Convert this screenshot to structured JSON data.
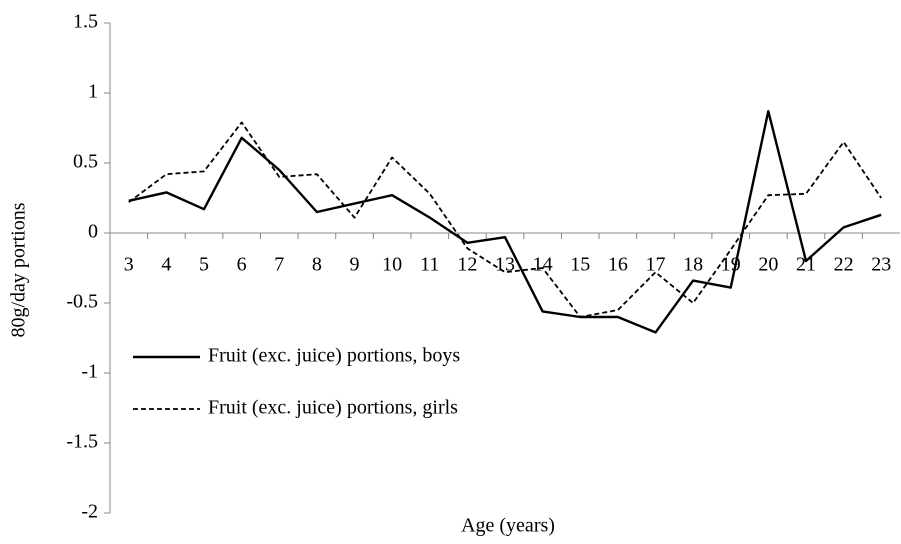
{
  "chart_data": {
    "type": "line",
    "x_label": "Age (years)",
    "y_label": "80g/day portions",
    "categories": [
      3,
      4,
      5,
      6,
      7,
      8,
      9,
      10,
      11,
      12,
      13,
      14,
      15,
      16,
      17,
      18,
      19,
      20,
      21,
      22,
      23
    ],
    "series": [
      {
        "name": "Fruit (exc. juice) portions, boys",
        "color": "#000000",
        "style": "solid",
        "values": [
          0.23,
          0.29,
          0.17,
          0.68,
          0.45,
          0.15,
          0.21,
          0.27,
          0.11,
          -0.07,
          -0.03,
          -0.56,
          -0.6,
          -0.6,
          -0.71,
          -0.34,
          -0.39,
          0.87,
          -0.2,
          0.04,
          0.13
        ]
      },
      {
        "name": "Fruit (exc. juice) portions, girls",
        "color": "#000000",
        "style": "dashed",
        "values": [
          0.22,
          0.42,
          0.44,
          0.79,
          0.4,
          0.42,
          0.11,
          0.54,
          0.28,
          -0.11,
          -0.28,
          -0.25,
          -0.6,
          -0.55,
          -0.28,
          -0.5,
          -0.12,
          0.27,
          0.28,
          0.65,
          0.25
        ]
      }
    ],
    "ylim": [
      -2,
      1.5
    ],
    "yticks": [
      1.5,
      1,
      0.5,
      0,
      -0.5,
      -1,
      -1.5,
      -2
    ],
    "grid": false
  }
}
